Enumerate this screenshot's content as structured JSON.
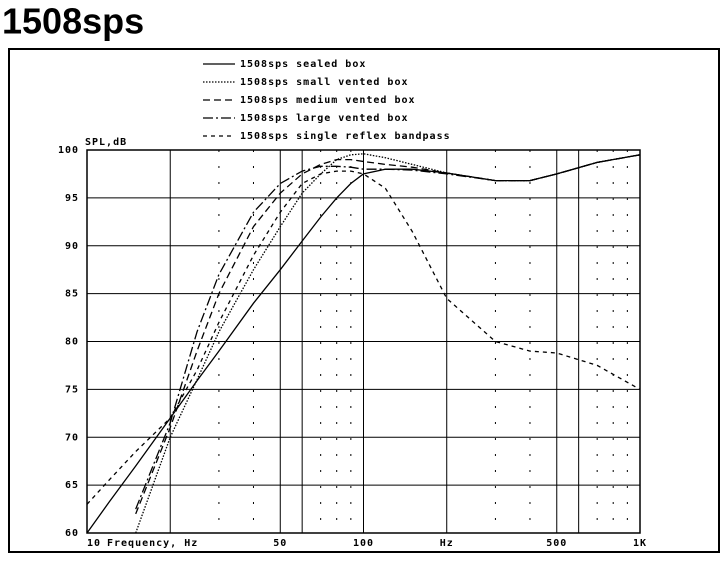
{
  "chart_data": {
    "type": "line",
    "title": "1508sps",
    "ylabel": "SPL,dB",
    "xlabel": "Frequency, Hz",
    "x_unit": "Hz",
    "x_unit_at": 200,
    "log_x": true,
    "grid": true,
    "x": [
      10,
      12,
      15,
      20,
      25,
      30,
      40,
      50,
      60,
      70,
      80,
      90,
      100,
      120,
      150,
      200,
      300,
      400,
      500,
      700,
      1000
    ],
    "series": [
      {
        "name": "1508sps sealed box",
        "color": "#000000",
        "dash": "solid",
        "values": [
          60,
          63.2,
          67,
          72,
          75.9,
          79,
          84,
          87.5,
          90.5,
          93,
          95,
          96.5,
          97.5,
          98,
          98,
          97.6,
          96.8,
          96.8,
          97.5,
          98.7,
          99.5
        ]
      },
      {
        "name": "1508sps small vented box",
        "color": "#000000",
        "dash": "dotted",
        "values": [
          null,
          null,
          60,
          70,
          76,
          81,
          87.5,
          92,
          95.5,
          97.5,
          99,
          99.5,
          99.6,
          99.2,
          98.5,
          97.6,
          96.8,
          96.8,
          97.5,
          98.7,
          99.5
        ]
      },
      {
        "name": "1508sps medium vented box",
        "color": "#000000",
        "dash": "dashed",
        "values": [
          null,
          null,
          62,
          71,
          79,
          85,
          92,
          95.5,
          97.5,
          98.5,
          99,
          99,
          98.8,
          98.5,
          98.2,
          97.6,
          96.8,
          96.8,
          97.5,
          98.7,
          99.5
        ]
      },
      {
        "name": "1508sps large vented box",
        "color": "#000000",
        "dash": "dashdot",
        "values": [
          null,
          null,
          62.5,
          71.5,
          81,
          87,
          93.5,
          96.5,
          97.8,
          98.3,
          98.3,
          98.2,
          98,
          98,
          97.9,
          97.5,
          96.8,
          96.8,
          97.5,
          98.7,
          99.5
        ]
      },
      {
        "name": "1508sps single reflex bandpass",
        "color": "#000000",
        "dash": "shortdash",
        "values": [
          63,
          65.5,
          68.5,
          72,
          77,
          82,
          89,
          93.5,
          96.5,
          97.5,
          97.8,
          97.8,
          97.5,
          96,
          91.5,
          84.5,
          80,
          79,
          78.8,
          77.5,
          75
        ]
      }
    ],
    "xlim": [
      10,
      1000
    ],
    "xticks": [
      10,
      50,
      100,
      500,
      {
        "value": 1000,
        "label": "1K"
      }
    ],
    "xminor": [
      20,
      30,
      40,
      60,
      70,
      80,
      90,
      200,
      300,
      400,
      600,
      700,
      800,
      900
    ],
    "ylim": [
      60,
      100
    ],
    "yticks": [
      60,
      65,
      70,
      75,
      80,
      85,
      90,
      95,
      100
    ]
  }
}
